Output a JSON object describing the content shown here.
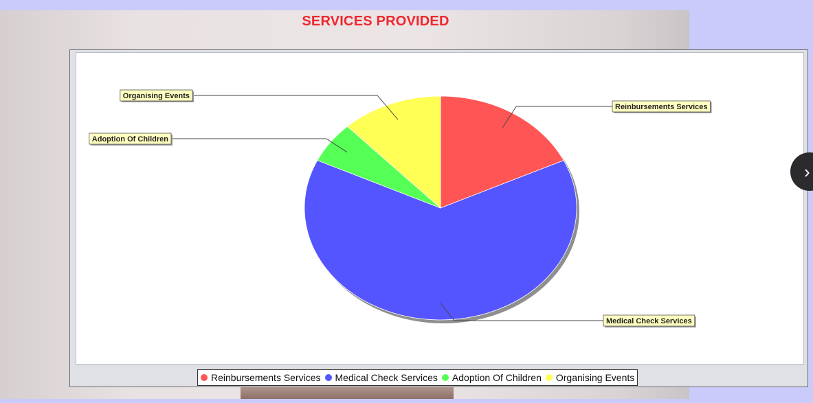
{
  "page": {
    "title": "SERVICES PROVIDED"
  },
  "carousel": {
    "next_icon": "chevron-right-icon",
    "next_glyph": "›"
  },
  "chart_data": {
    "type": "pie",
    "title": "",
    "legend_position": "bottom",
    "slices": [
      {
        "label": "Reinbursements Services",
        "value": 18,
        "color": "#ff5555"
      },
      {
        "label": "Medical Check Services",
        "value": 64,
        "color": "#5555ff"
      },
      {
        "label": "Adoption Of Children",
        "value": 6,
        "color": "#55ff55"
      },
      {
        "label": "Organising Events",
        "value": 12,
        "color": "#ffff55"
      }
    ]
  }
}
